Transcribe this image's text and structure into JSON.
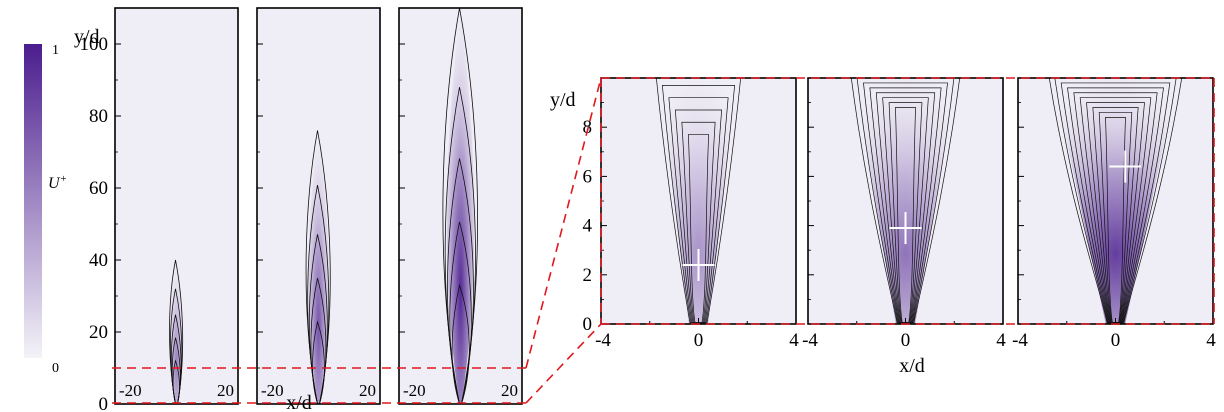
{
  "colors": {
    "low": "#f4f3f8",
    "high": "#4b1d8e",
    "contour": "#111111",
    "zoom_box": "#e0181e",
    "marker": "#ffffff"
  },
  "colorbar": {
    "label": "U+",
    "max_label": "1",
    "min_label": "0",
    "range": [
      0,
      1
    ]
  },
  "chart_data": [
    {
      "type": "heatmap",
      "title": "",
      "group": "far-field",
      "xlabel": "x/d",
      "ylabel": "y/d",
      "xlim": [
        -20,
        20
      ],
      "ylim": [
        0,
        110
      ],
      "x_ticks": [
        "-20",
        "20"
      ],
      "y_ticks": [
        "0",
        "20",
        "40",
        "60",
        "80",
        "100"
      ],
      "zoom_region_y": [
        0,
        10
      ],
      "panels": [
        {
          "jet_length": 40,
          "peak_intensity": 0.55,
          "wander": 0.0
        },
        {
          "jet_length": 76,
          "peak_intensity": 0.75,
          "wander": 1.0
        },
        {
          "jet_length": 110,
          "peak_intensity": 0.95,
          "wander": 2.0
        }
      ]
    },
    {
      "type": "heatmap",
      "title": "",
      "group": "near-field",
      "xlabel": "x/d",
      "ylabel": "y/d",
      "xlim": [
        -4,
        4
      ],
      "ylim": [
        0,
        10
      ],
      "x_ticks": [
        "-4",
        "0",
        "4"
      ],
      "y_ticks": [
        "0",
        "2",
        "4",
        "6",
        "8"
      ],
      "panels": [
        {
          "marker": {
            "x": 0.0,
            "y": 2.4
          },
          "peak_intensity": 0.45
        },
        {
          "marker": {
            "x": 0.0,
            "y": 3.9
          },
          "peak_intensity": 0.6
        },
        {
          "marker": {
            "x": 0.4,
            "y": 6.4
          },
          "peak_intensity": 0.85
        }
      ]
    }
  ]
}
